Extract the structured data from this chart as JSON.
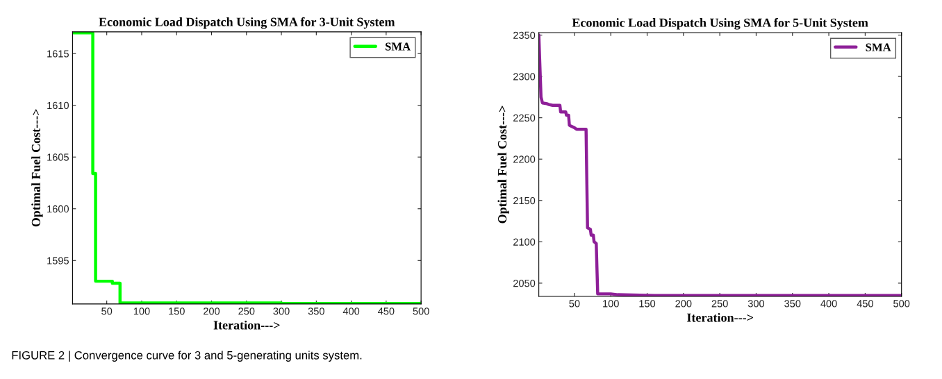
{
  "chart_data": [
    {
      "type": "step",
      "title": "Economic Load Dispatch Using SMA for 3-Unit System",
      "xlabel": "Iteration--->",
      "ylabel": "Optimal Fuel Cost--->",
      "x": [
        1,
        29,
        30,
        33,
        34,
        57,
        58,
        68,
        69,
        150,
        300,
        500
      ],
      "series": [
        {
          "name": "SMA",
          "color": "#00ff00",
          "values": [
            1617.0,
            1617.0,
            1603.4,
            1603.4,
            1593.0,
            1593.0,
            1592.8,
            1592.8,
            1590.9,
            1590.9,
            1590.85,
            1590.85
          ]
        }
      ],
      "xlim": [
        1,
        500
      ],
      "ylim": [
        1590.8,
        1617.1
      ],
      "xticks": [
        50,
        100,
        150,
        200,
        250,
        300,
        350,
        400,
        450,
        500
      ],
      "yticks": [
        1595,
        1600,
        1605,
        1610,
        1615
      ],
      "legend": "top right",
      "grid": false,
      "marker": "none",
      "line_style": "solid",
      "annotations": [
        "FIGURE 2 | Convergence curve for 3 and 5-generating units system."
      ]
    },
    {
      "type": "line",
      "title": "Economic Load Dispatch Using SMA for 5-Unit System",
      "xlabel": "Iteration--->",
      "ylabel": "Optimal Fuel Cost--->",
      "x": [
        1,
        3,
        4,
        6,
        12,
        15,
        20,
        30,
        31,
        38,
        39,
        42,
        43,
        45,
        50,
        53,
        66,
        68,
        72,
        73,
        76,
        77,
        80,
        82,
        100,
        110,
        160,
        250,
        500
      ],
      "series": [
        {
          "name": "SMA",
          "color": "#8e1f98",
          "values": [
            2350,
            2300,
            2275,
            2268,
            2267,
            2266,
            2265,
            2265,
            2257,
            2257,
            2253,
            2253,
            2241,
            2240,
            2238,
            2236,
            2236,
            2117,
            2115,
            2108,
            2108,
            2100,
            2098,
            2037,
            2037,
            2036,
            2035,
            2035,
            2035
          ]
        }
      ],
      "xlim": [
        1,
        500
      ],
      "ylim": [
        2034,
        2353
      ],
      "xticks": [
        50,
        100,
        150,
        200,
        250,
        300,
        350,
        400,
        450,
        500
      ],
      "yticks": [
        2050,
        2100,
        2150,
        2200,
        2250,
        2300,
        2350
      ],
      "legend": "top right",
      "grid": false,
      "marker": "none",
      "line_style": "solid"
    }
  ]
}
